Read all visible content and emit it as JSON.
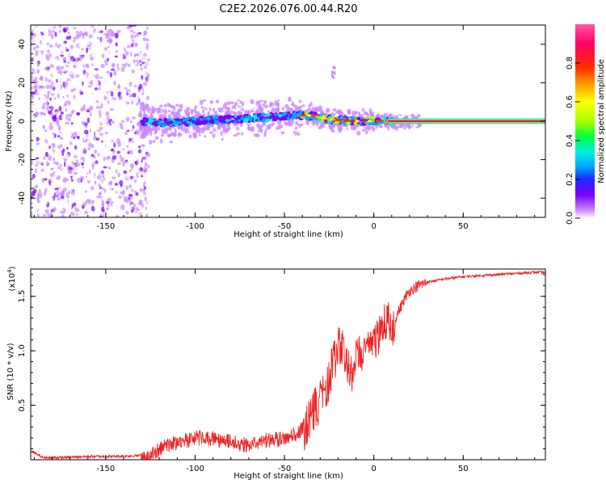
{
  "title": "C2E2.2026.076.00.44.R20",
  "chart_data": [
    {
      "type": "heatmap",
      "xlabel": "Height of straight line (km)",
      "ylabel": "Frequency (Hz)",
      "xlim": [
        -192,
        96
      ],
      "ylim": [
        -50,
        50
      ],
      "xticks": [
        -150,
        -100,
        -50,
        0,
        50
      ],
      "yticks": [
        -40,
        -20,
        0,
        20,
        40
      ],
      "colorbar": {
        "label": "Normalized spectral amplitude",
        "range": [
          0,
          1
        ],
        "ticks": [
          "0.0",
          "0.2",
          "0.4",
          "0.6",
          "0.8"
        ],
        "tick_values": [
          0.0,
          0.2,
          0.4,
          0.6,
          0.8
        ],
        "colors": [
          "#ffffff",
          "#cc88ff",
          "#7a00ff",
          "#1a2bff",
          "#00aaff",
          "#00f0e0",
          "#00ff40",
          "#aaff00",
          "#ffff00",
          "#ffaa00",
          "#ff2a00",
          "#ff0066",
          "#ff55aa"
        ]
      },
      "ridge": {
        "description_points": [
          {
            "x": -192,
            "y": 0
          },
          {
            "x": -130,
            "y": 0
          },
          {
            "x": -120,
            "y": -1
          },
          {
            "x": -100,
            "y": 0
          },
          {
            "x": -80,
            "y": 1
          },
          {
            "x": -60,
            "y": 2
          },
          {
            "x": -45,
            "y": 3
          },
          {
            "x": -35,
            "y": 3
          },
          {
            "x": -25,
            "y": 1
          },
          {
            "x": -10,
            "y": 0
          },
          {
            "x": 0,
            "y": 0
          },
          {
            "x": 10,
            "y": 0
          },
          {
            "x": 96,
            "y": 0
          }
        ],
        "solid_from_x": 10,
        "noise_until_x": -130
      }
    },
    {
      "type": "line",
      "xlabel": "Height of straight line (km)",
      "ylabel": "SNR (10 * v/v)",
      "scale_note": "(x10⁴)",
      "scale_base": "(x10",
      "scale_exp": "4",
      "scale_close": ")",
      "xlim": [
        -192,
        96
      ],
      "ylim": [
        0,
        1.75
      ],
      "xticks": [
        -150,
        -100,
        -50,
        0,
        50
      ],
      "yticks": [
        0.5,
        1.0,
        1.5
      ],
      "ytick_labels": [
        "0.5",
        "1.0",
        "1.5"
      ],
      "series": [
        {
          "color": "#ee2222",
          "x": [
            -192,
            -185,
            -175,
            -160,
            -145,
            -130,
            -125,
            -120,
            -115,
            -110,
            -105,
            -100,
            -95,
            -90,
            -85,
            -80,
            -75,
            -70,
            -65,
            -60,
            -55,
            -50,
            -45,
            -40,
            -37,
            -35,
            -33,
            -30,
            -28,
            -25,
            -22,
            -20,
            -18,
            -15,
            -12,
            -10,
            -8,
            -5,
            -3,
            0,
            3,
            5,
            8,
            10,
            12,
            15,
            18,
            20,
            25,
            30,
            40,
            50,
            60,
            70,
            80,
            90,
            96
          ],
          "y": [
            0.08,
            0.02,
            0.02,
            0.03,
            0.03,
            0.04,
            0.07,
            0.14,
            0.18,
            0.2,
            0.22,
            0.24,
            0.25,
            0.24,
            0.22,
            0.21,
            0.18,
            0.19,
            0.2,
            0.22,
            0.23,
            0.25,
            0.27,
            0.32,
            0.45,
            0.55,
            0.6,
            0.65,
            0.72,
            0.88,
            1.05,
            1.15,
            1.15,
            1.0,
            0.9,
            1.05,
            1.1,
            1.1,
            1.15,
            1.2,
            1.25,
            1.35,
            1.4,
            1.35,
            1.3,
            1.4,
            1.5,
            1.55,
            1.6,
            1.63,
            1.66,
            1.68,
            1.69,
            1.7,
            1.71,
            1.72,
            1.72
          ]
        }
      ]
    }
  ]
}
